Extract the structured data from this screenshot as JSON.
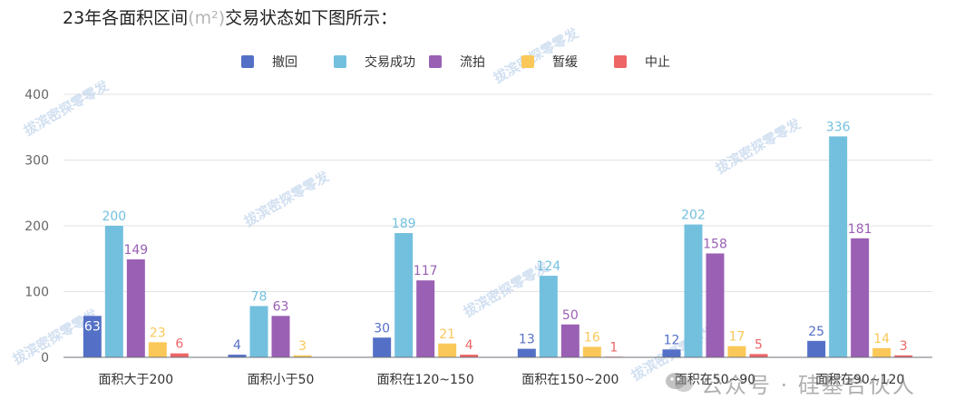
{
  "heading": {
    "text": "23年各面积区间",
    "unit": "(m²)",
    "suffix": "交易状态如下图所示："
  },
  "chart_data": {
    "type": "bar",
    "categories": [
      "面积大于200",
      "面积小于50",
      "面积在120~150",
      "面积在150~200",
      "面积在50~90",
      "面积在90~120"
    ],
    "series": [
      {
        "name": "撤回",
        "color": "#5470c6",
        "values": [
          63,
          4,
          30,
          13,
          12,
          25
        ]
      },
      {
        "name": "交易成功",
        "color": "#73c0de",
        "values": [
          200,
          78,
          189,
          124,
          202,
          336
        ]
      },
      {
        "name": "流拍",
        "color": "#9a60b4",
        "values": [
          149,
          63,
          117,
          50,
          158,
          181
        ]
      },
      {
        "name": "暂缓",
        "color": "#fac858",
        "values": [
          23,
          3,
          21,
          16,
          17,
          14
        ]
      },
      {
        "name": "中止",
        "color": "#ee6666",
        "values": [
          6,
          null,
          4,
          1,
          5,
          3
        ]
      }
    ],
    "yticks": [
      "0",
      "100",
      "200",
      "300",
      "400"
    ],
    "ylim": [
      0,
      400
    ],
    "grid": true,
    "legend": "top-center"
  },
  "watermark": {
    "text": "拔滨密探零零发"
  },
  "brand": {
    "text": "公众号 · 硅基合伙人",
    "icon": "wechat-icon"
  }
}
